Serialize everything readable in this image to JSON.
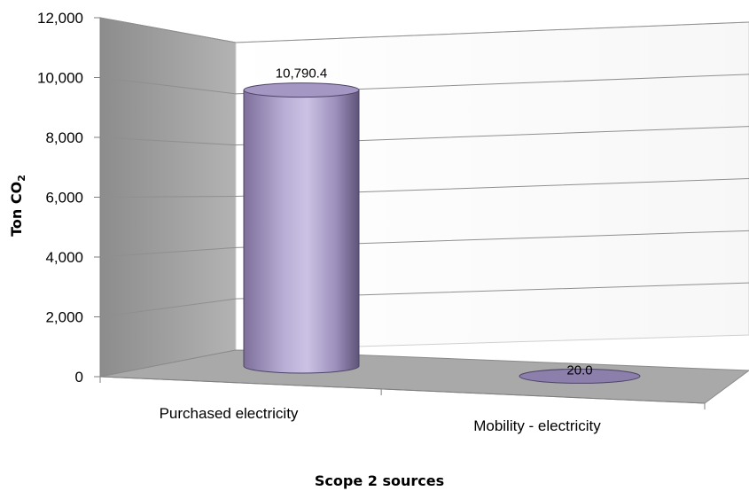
{
  "chart_data": {
    "type": "bar",
    "style": "3d-cylinder",
    "categories": [
      "Purchased electricity",
      "Mobility - electricity"
    ],
    "values": [
      10790.4,
      20.0
    ],
    "value_labels": [
      "10,790.4",
      "20.0"
    ],
    "xlabel": "Scope 2 sources",
    "ylabel": "Ton CO",
    "ylabel_subscript": "2",
    "ylim": [
      0,
      12000
    ],
    "yticks": [
      "0",
      "2,000",
      "4,000",
      "6,000",
      "8,000",
      "10,000",
      "12,000"
    ],
    "grid": true,
    "legend": "none",
    "colors": {
      "bar": "#9e8fbf",
      "floor": "#a6a6a6",
      "side_wall": "#9a9a9a"
    }
  }
}
